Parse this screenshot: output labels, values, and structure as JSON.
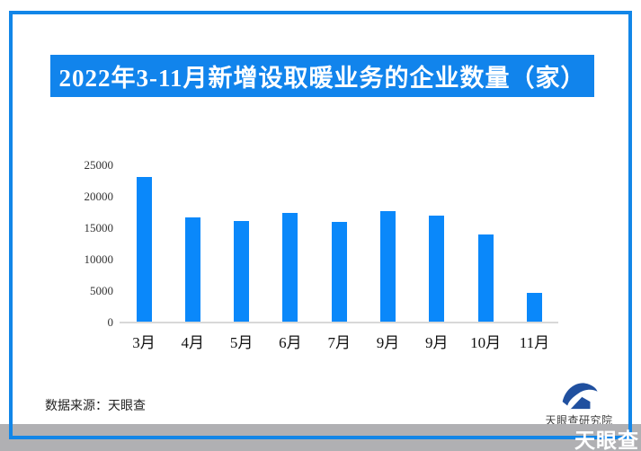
{
  "banner": {
    "title": "2022年3-11月新增设取暖业务的企业数量（家）"
  },
  "chart_data": {
    "type": "bar",
    "title": "2022年3-11月新增设取暖业务的企业数量（家）",
    "categories": [
      "3月",
      "4月",
      "5月",
      "6月",
      "7月",
      "9月",
      "9月",
      "10月",
      "11月"
    ],
    "values": [
      23000,
      16600,
      16000,
      17300,
      15800,
      17600,
      16900,
      13800,
      4600
    ],
    "xlabel": "",
    "ylabel": "",
    "ylim": [
      0,
      25000
    ],
    "yticks": [
      0,
      5000,
      10000,
      15000,
      20000,
      25000
    ],
    "grid": false,
    "legend": false,
    "bar_color": "#0a88fa"
  },
  "footer": {
    "source_note": "数据来源：天眼查",
    "logo_text": "天眼查研究院",
    "watermark": "天眼查"
  },
  "colors": {
    "banner_bg": "#1184ec",
    "bar": "#0a88fa",
    "frame_border": "#1286e8",
    "gray_band": "#b0b0b3",
    "axis_line": "#d8d8d8",
    "title_text": "#ffffff"
  }
}
